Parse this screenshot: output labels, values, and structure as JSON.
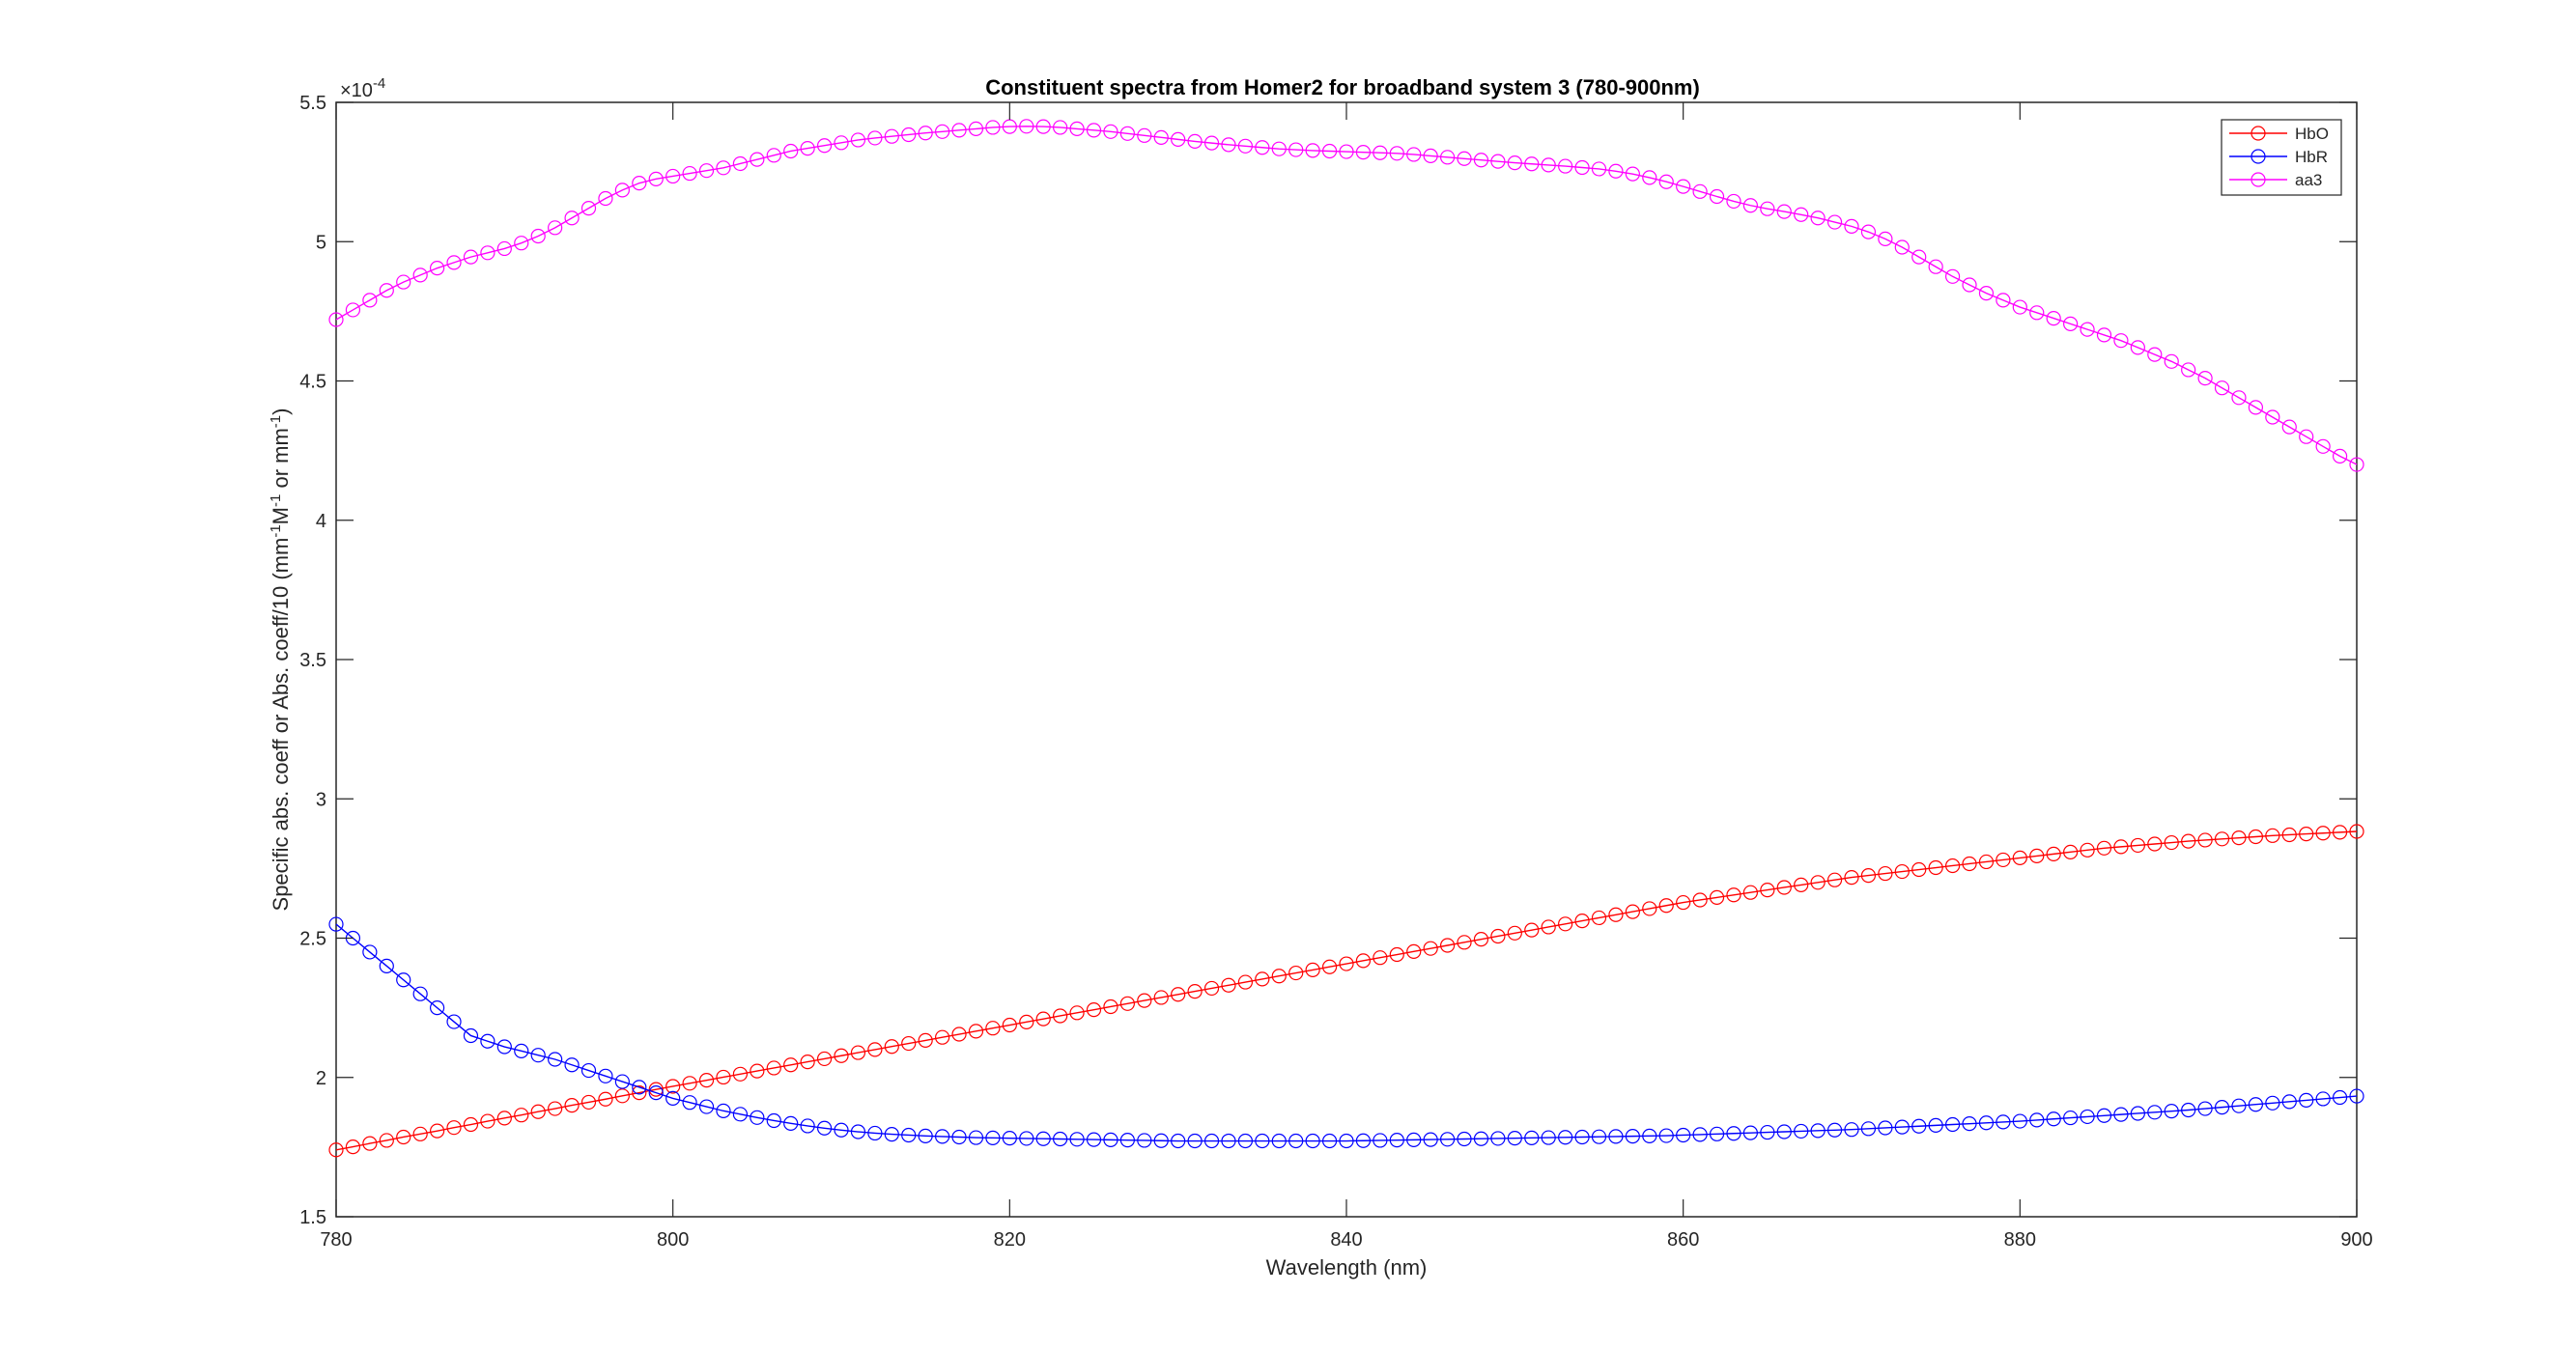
{
  "chart_data": {
    "type": "line",
    "title": "Constituent spectra from Homer2 for broadband system 3 (780-900nm)",
    "xlabel": "Wavelength (nm)",
    "ylabel_main": "Specific abs. coeff or Abs. coeff/10 (mm",
    "ylabel_sup1": "-1",
    "ylabel_mid": "M",
    "ylabel_sup2": "-1",
    "ylabel_or": " or mm",
    "ylabel_sup3": "-1",
    "ylabel_end": ")",
    "exponent_base": "×10",
    "exponent_power": "-4",
    "xlim": [
      780,
      900
    ],
    "ylim": [
      1.5,
      5.5
    ],
    "x_ticks": [
      780,
      800,
      820,
      840,
      860,
      880,
      900
    ],
    "y_ticks": [
      1.5,
      2,
      2.5,
      3,
      3.5,
      4,
      4.5,
      5,
      5.5
    ],
    "y_tick_labels": [
      "1.5",
      "2",
      "2.5",
      "3",
      "3.5",
      "4",
      "4.5",
      "5",
      "5.5"
    ],
    "grid": false,
    "legend_position": "top-right",
    "marker": "circle",
    "x_start": 780,
    "x_step": 1,
    "series": [
      {
        "name": "HbO",
        "color": "#ff0000",
        "values": [
          1.74,
          1.751,
          1.763,
          1.774,
          1.786,
          1.797,
          1.808,
          1.82,
          1.831,
          1.843,
          1.854,
          1.865,
          1.877,
          1.888,
          1.9,
          1.911,
          1.922,
          1.934,
          1.945,
          1.957,
          1.968,
          1.979,
          1.99,
          2.001,
          2.012,
          2.023,
          2.034,
          2.045,
          2.056,
          2.067,
          2.078,
          2.089,
          2.1,
          2.111,
          2.122,
          2.133,
          2.144,
          2.155,
          2.166,
          2.177,
          2.188,
          2.199,
          2.21,
          2.221,
          2.232,
          2.243,
          2.254,
          2.265,
          2.276,
          2.287,
          2.298,
          2.309,
          2.32,
          2.331,
          2.342,
          2.353,
          2.364,
          2.375,
          2.386,
          2.397,
          2.408,
          2.419,
          2.43,
          2.441,
          2.452,
          2.463,
          2.474,
          2.485,
          2.496,
          2.507,
          2.518,
          2.529,
          2.54,
          2.551,
          2.562,
          2.573,
          2.584,
          2.595,
          2.606,
          2.617,
          2.628,
          2.637,
          2.646,
          2.655,
          2.664,
          2.673,
          2.682,
          2.691,
          2.7,
          2.709,
          2.718,
          2.725,
          2.732,
          2.739,
          2.746,
          2.753,
          2.76,
          2.767,
          2.774,
          2.781,
          2.788,
          2.795,
          2.802,
          2.809,
          2.816,
          2.823,
          2.828,
          2.833,
          2.838,
          2.843,
          2.848,
          2.852,
          2.856,
          2.86,
          2.864,
          2.868,
          2.871,
          2.874,
          2.877,
          2.88,
          2.883
        ]
      },
      {
        "name": "HbR",
        "color": "#0000ff",
        "values": [
          2.55,
          2.5,
          2.45,
          2.4,
          2.35,
          2.3,
          2.25,
          2.2,
          2.15,
          2.13,
          2.11,
          2.095,
          2.08,
          2.065,
          2.045,
          2.025,
          2.005,
          1.985,
          1.965,
          1.945,
          1.925,
          1.91,
          1.895,
          1.88,
          1.868,
          1.856,
          1.845,
          1.835,
          1.826,
          1.818,
          1.811,
          1.805,
          1.8,
          1.796,
          1.793,
          1.79,
          1.788,
          1.786,
          1.784,
          1.783,
          1.782,
          1.781,
          1.78,
          1.779,
          1.778,
          1.777,
          1.776,
          1.775,
          1.774,
          1.773,
          1.772,
          1.772,
          1.772,
          1.772,
          1.772,
          1.772,
          1.772,
          1.772,
          1.772,
          1.772,
          1.772,
          1.773,
          1.774,
          1.775,
          1.776,
          1.777,
          1.778,
          1.779,
          1.78,
          1.781,
          1.782,
          1.783,
          1.784,
          1.785,
          1.786,
          1.787,
          1.788,
          1.789,
          1.79,
          1.791,
          1.793,
          1.795,
          1.797,
          1.799,
          1.801,
          1.803,
          1.805,
          1.807,
          1.809,
          1.811,
          1.813,
          1.816,
          1.819,
          1.822,
          1.825,
          1.828,
          1.831,
          1.834,
          1.837,
          1.84,
          1.843,
          1.847,
          1.851,
          1.855,
          1.859,
          1.863,
          1.867,
          1.871,
          1.875,
          1.879,
          1.883,
          1.888,
          1.893,
          1.898,
          1.903,
          1.908,
          1.913,
          1.918,
          1.923,
          1.928,
          1.933
        ]
      },
      {
        "name": "aa3",
        "color": "#ff00ff",
        "values": [
          4.72,
          4.755,
          4.79,
          4.825,
          4.855,
          4.88,
          4.905,
          4.925,
          4.945,
          4.96,
          4.975,
          4.995,
          5.02,
          5.05,
          5.085,
          5.12,
          5.155,
          5.185,
          5.21,
          5.225,
          5.235,
          5.245,
          5.255,
          5.265,
          5.28,
          5.295,
          5.31,
          5.325,
          5.335,
          5.345,
          5.355,
          5.365,
          5.372,
          5.378,
          5.384,
          5.39,
          5.395,
          5.4,
          5.405,
          5.41,
          5.413,
          5.414,
          5.413,
          5.41,
          5.405,
          5.4,
          5.395,
          5.388,
          5.381,
          5.374,
          5.367,
          5.36,
          5.354,
          5.348,
          5.343,
          5.338,
          5.333,
          5.33,
          5.327,
          5.325,
          5.323,
          5.321,
          5.319,
          5.317,
          5.313,
          5.308,
          5.303,
          5.298,
          5.293,
          5.288,
          5.283,
          5.279,
          5.275,
          5.271,
          5.266,
          5.261,
          5.253,
          5.243,
          5.23,
          5.215,
          5.198,
          5.18,
          5.162,
          5.145,
          5.13,
          5.118,
          5.108,
          5.097,
          5.085,
          5.07,
          5.055,
          5.035,
          5.01,
          4.98,
          4.945,
          4.91,
          4.875,
          4.845,
          4.815,
          4.79,
          4.765,
          4.745,
          4.725,
          4.705,
          4.685,
          4.665,
          4.645,
          4.62,
          4.595,
          4.57,
          4.54,
          4.51,
          4.475,
          4.44,
          4.405,
          4.37,
          4.335,
          4.3,
          4.265,
          4.23,
          4.2
        ]
      }
    ]
  }
}
